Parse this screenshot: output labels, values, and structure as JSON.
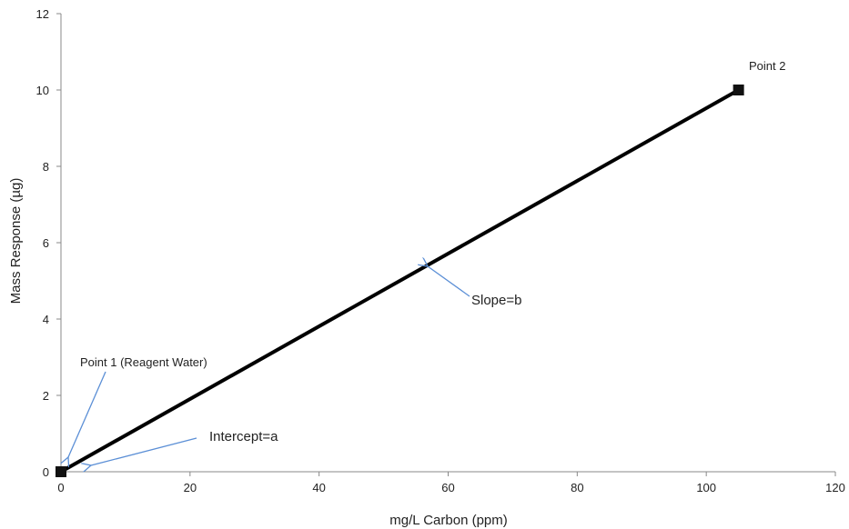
{
  "chart_data": {
    "type": "line",
    "x": [
      0,
      105
    ],
    "series": [
      {
        "values": [
          0,
          10
        ]
      }
    ],
    "markers": [
      {
        "x": 0,
        "y": 0
      },
      {
        "x": 105,
        "y": 10
      }
    ],
    "xlabel": "mg/L Carbon (ppm)",
    "ylabel": "Mass Response (µg)",
    "xlim": [
      0,
      120
    ],
    "ylim": [
      0,
      12
    ],
    "xticks": [
      "0",
      "20",
      "40",
      "60",
      "80",
      "100",
      "120"
    ],
    "yticks": [
      "0",
      "2",
      "4",
      "6",
      "8",
      "10",
      "12"
    ],
    "grid": false,
    "annotations": {
      "point2": "Point 2",
      "point1": "Point 1 (Reagent Water)",
      "intercept": "Intercept=a",
      "slope": "Slope=b"
    },
    "colors": {
      "line": "#000000",
      "arrow": "#5b8fd6",
      "axis": "#888888"
    }
  }
}
